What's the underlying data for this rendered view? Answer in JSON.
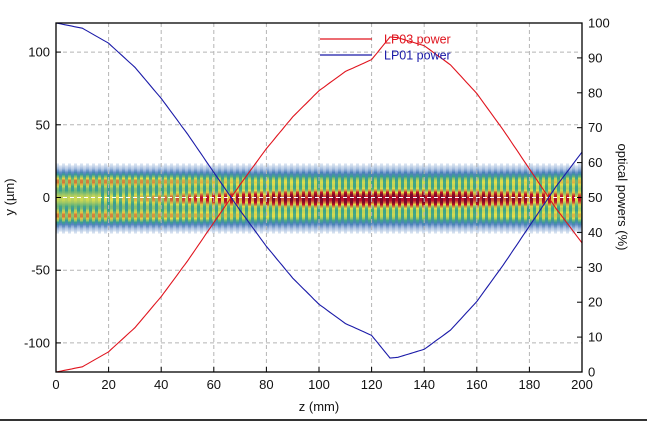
{
  "chart_data": {
    "type": "heatmap",
    "title": "",
    "xlabel": "z (mm)",
    "ylabel": "y (µm)",
    "y2label": "optical powers (%)",
    "xlim": [
      0,
      200
    ],
    "ylim": [
      -120,
      120
    ],
    "y2lim": [
      0,
      100
    ],
    "x_ticks": [
      "0",
      "20",
      "40",
      "60",
      "80",
      "100",
      "120",
      "140",
      "160",
      "180",
      "200"
    ],
    "y_ticks": [
      "-100",
      "-50",
      "0",
      "50",
      "100"
    ],
    "y2_ticks": [
      "0",
      "10",
      "20",
      "30",
      "40",
      "50",
      "60",
      "70",
      "80",
      "90",
      "100"
    ],
    "grid": true,
    "legend_position": "top-center",
    "heatmap": {
      "description": "beam intensity along propagation, concentrated around y=0 within about ±25 µm, with periodic beating",
      "extent_y": [
        -25,
        25
      ],
      "colormap": [
        "#ffffff",
        "#4f7fbf",
        "#3aa38a",
        "#e4e04a",
        "#c0102a",
        "#7a0a2a"
      ]
    },
    "series": [
      {
        "name": "LP03 power",
        "color": "#e0141e",
        "axis": "right",
        "x": [
          0,
          10,
          20,
          30,
          40,
          50,
          60,
          70,
          80,
          90,
          100,
          110,
          120,
          127,
          130,
          140,
          150,
          160,
          170,
          180,
          190,
          200
        ],
        "values": [
          0,
          1.5,
          5.8,
          12.7,
          21.6,
          31.8,
          42.8,
          53.7,
          64.0,
          73.1,
          80.6,
          86.1,
          89.5,
          96.0,
          95.8,
          93.5,
          88.0,
          79.8,
          69.4,
          58.2,
          47.0,
          37.0
        ]
      },
      {
        "name": "LP01 power",
        "color": "#1a1aa8",
        "axis": "right",
        "x": [
          0,
          10,
          20,
          30,
          40,
          50,
          60,
          70,
          80,
          90,
          100,
          110,
          120,
          127,
          130,
          140,
          150,
          160,
          170,
          180,
          190,
          200
        ],
        "values": [
          100,
          98.5,
          94.2,
          87.3,
          78.4,
          68.2,
          57.2,
          46.3,
          36.0,
          26.9,
          19.4,
          13.9,
          10.5,
          4.0,
          4.2,
          6.5,
          12.0,
          20.2,
          30.6,
          41.8,
          53.0,
          63.0
        ]
      }
    ]
  }
}
